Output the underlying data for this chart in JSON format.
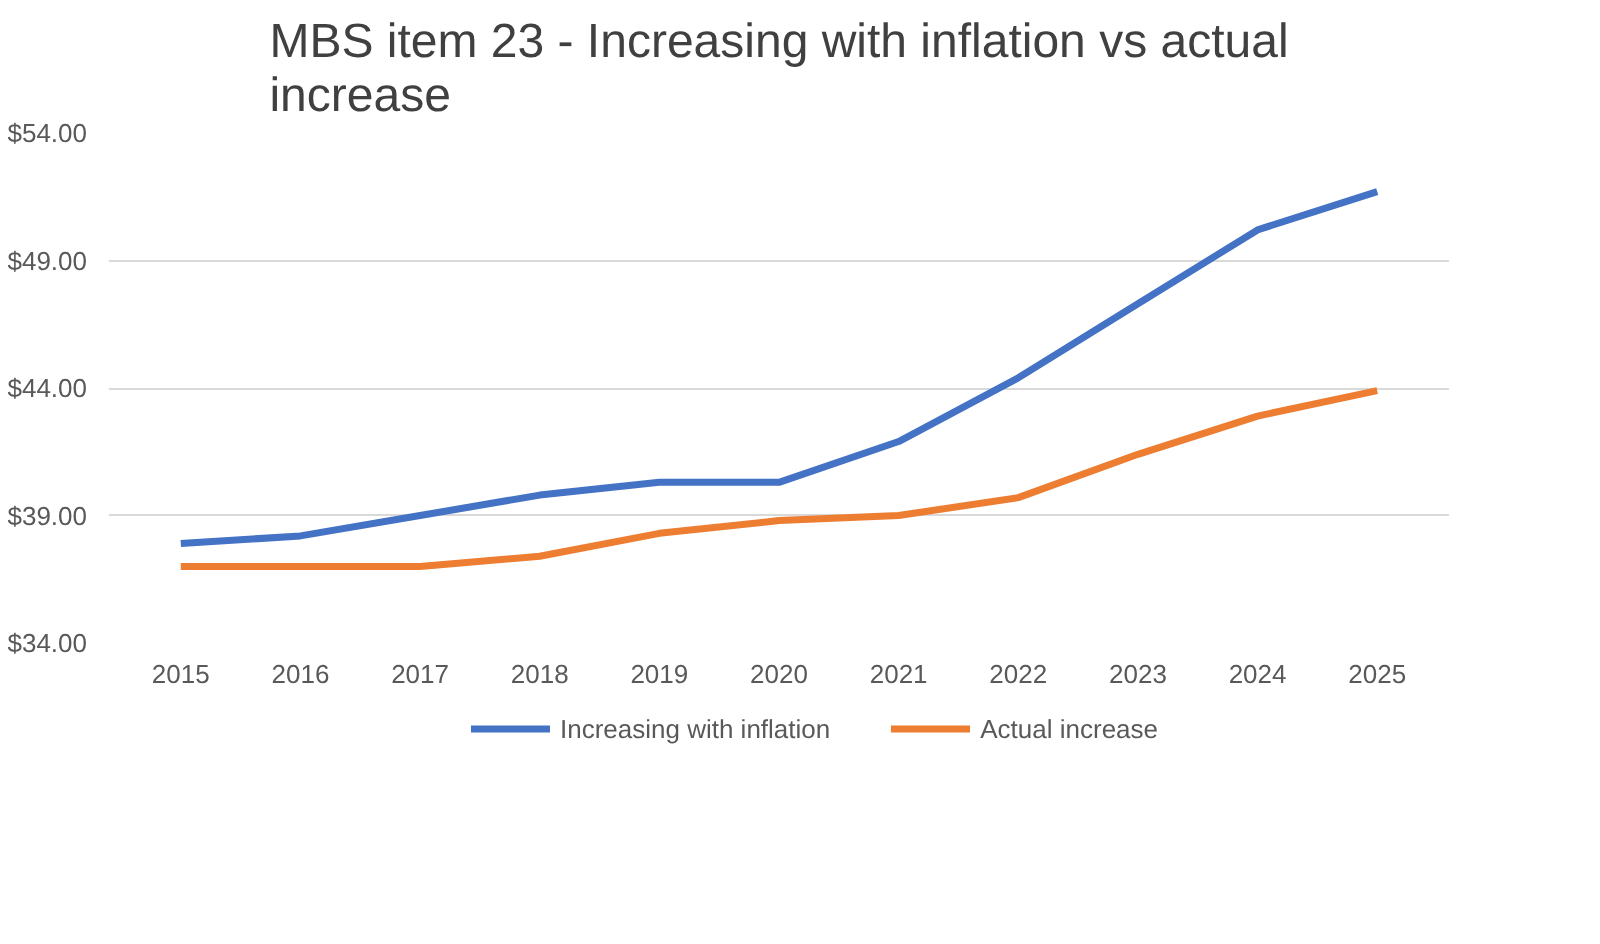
{
  "chart_data": {
    "type": "line",
    "title": "MBS item 23 - Increasing with inflation vs actual increase",
    "categories": [
      "2015",
      "2016",
      "2017",
      "2018",
      "2019",
      "2020",
      "2021",
      "2022",
      "2023",
      "2024",
      "2025"
    ],
    "series": [
      {
        "name": "Increasing with inflation",
        "color": "#4472c4",
        "values": [
          37.9,
          38.2,
          39.0,
          39.8,
          40.3,
          40.3,
          41.9,
          44.4,
          47.3,
          50.2,
          51.7
        ]
      },
      {
        "name": "Actual increase",
        "color": "#ed7d31",
        "values": [
          37.0,
          37.0,
          37.0,
          37.4,
          38.3,
          38.8,
          39.0,
          39.7,
          41.4,
          42.9,
          43.9
        ]
      }
    ],
    "ylim": [
      34,
      54
    ],
    "yticks": [
      {
        "value": 34,
        "label": "$34.00"
      },
      {
        "value": 39,
        "label": "$39.00"
      },
      {
        "value": 44,
        "label": "$44.00"
      },
      {
        "value": 49,
        "label": "$49.00"
      },
      {
        "value": 54,
        "label": "$54.00"
      }
    ],
    "grid": "y",
    "legend": "bottom",
    "marker": "none",
    "line_style": "solid"
  }
}
